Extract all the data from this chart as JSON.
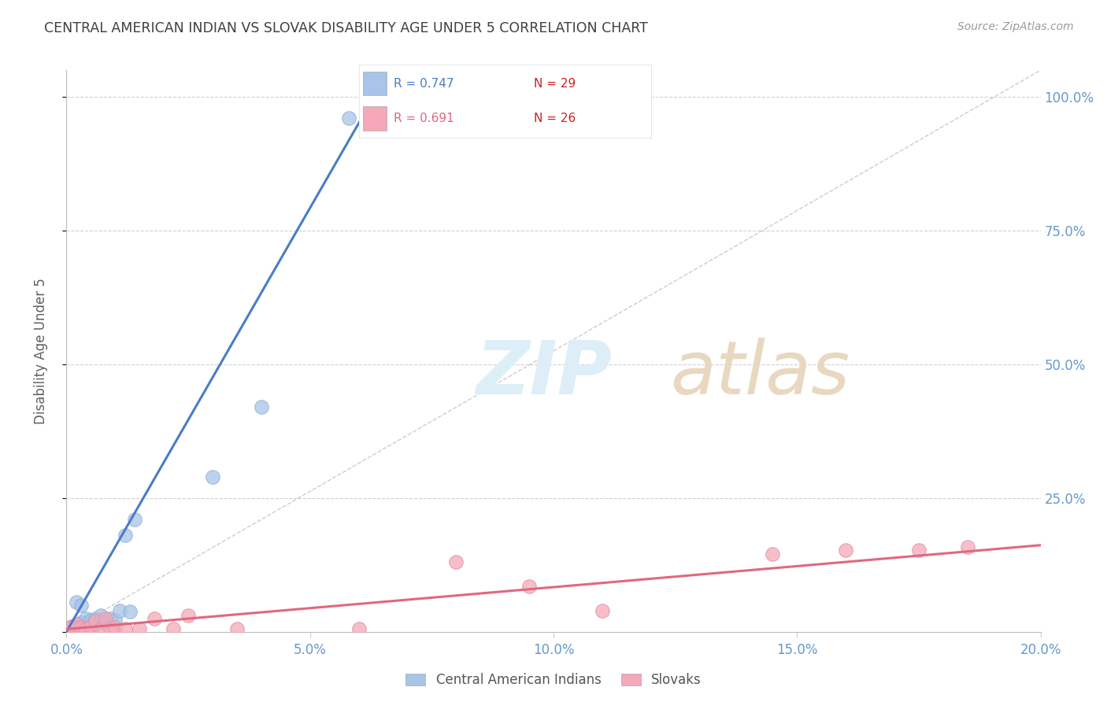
{
  "title": "CENTRAL AMERICAN INDIAN VS SLOVAK DISABILITY AGE UNDER 5 CORRELATION CHART",
  "source": "Source: ZipAtlas.com",
  "ylabel": "Disability Age Under 5",
  "xlim": [
    0.0,
    0.2
  ],
  "ylim": [
    0.0,
    1.05
  ],
  "legend1_r": "R = 0.747",
  "legend1_n": "N = 29",
  "legend2_r": "R = 0.691",
  "legend2_n": "N = 26",
  "blue_color": "#a8c4e8",
  "pink_color": "#f4a8b8",
  "blue_line_color": "#4a7cc8",
  "pink_line_color": "#e06880",
  "diagonal_color": "#c0c0c0",
  "watermark_color": "#ddeef8",
  "background_color": "#ffffff",
  "grid_color": "#d0d0d8",
  "title_color": "#404040",
  "axis_label_color": "#6699cc",
  "blue_points_x": [
    0.001,
    0.001,
    0.002,
    0.002,
    0.002,
    0.003,
    0.003,
    0.003,
    0.003,
    0.004,
    0.004,
    0.004,
    0.005,
    0.005,
    0.005,
    0.006,
    0.006,
    0.007,
    0.007,
    0.008,
    0.009,
    0.01,
    0.011,
    0.012,
    0.013,
    0.014,
    0.03,
    0.04,
    0.058
  ],
  "blue_points_y": [
    0.005,
    0.01,
    0.005,
    0.01,
    0.055,
    0.005,
    0.012,
    0.018,
    0.05,
    0.008,
    0.015,
    0.025,
    0.005,
    0.012,
    0.022,
    0.015,
    0.025,
    0.018,
    0.03,
    0.02,
    0.025,
    0.022,
    0.04,
    0.18,
    0.038,
    0.21,
    0.29,
    0.42,
    0.96
  ],
  "pink_points_x": [
    0.001,
    0.001,
    0.002,
    0.002,
    0.003,
    0.004,
    0.005,
    0.006,
    0.007,
    0.008,
    0.009,
    0.01,
    0.012,
    0.015,
    0.018,
    0.022,
    0.025,
    0.035,
    0.06,
    0.08,
    0.095,
    0.11,
    0.145,
    0.16,
    0.175,
    0.185
  ],
  "pink_points_y": [
    0.005,
    0.01,
    0.005,
    0.015,
    0.008,
    0.005,
    0.01,
    0.02,
    0.005,
    0.025,
    0.005,
    0.008,
    0.005,
    0.005,
    0.025,
    0.005,
    0.03,
    0.005,
    0.005,
    0.13,
    0.085,
    0.04,
    0.145,
    0.152,
    0.152,
    0.158
  ],
  "blue_trendline_x": [
    0.0,
    0.065
  ],
  "blue_trendline_y": [
    0.0,
    1.03
  ],
  "pink_trendline_x": [
    0.0,
    0.2
  ],
  "pink_trendline_y": [
    0.005,
    0.162
  ],
  "xtick_positions": [
    0.0,
    0.05,
    0.1,
    0.15,
    0.2
  ],
  "xtick_labels": [
    "0.0%",
    "5.0%",
    "10.0%",
    "15.0%",
    "20.0%"
  ],
  "ytick_positions": [
    0.0,
    0.25,
    0.5,
    0.75,
    1.0
  ],
  "ytick_labels": [
    "",
    "25.0%",
    "50.0%",
    "75.0%",
    "100.0%"
  ]
}
